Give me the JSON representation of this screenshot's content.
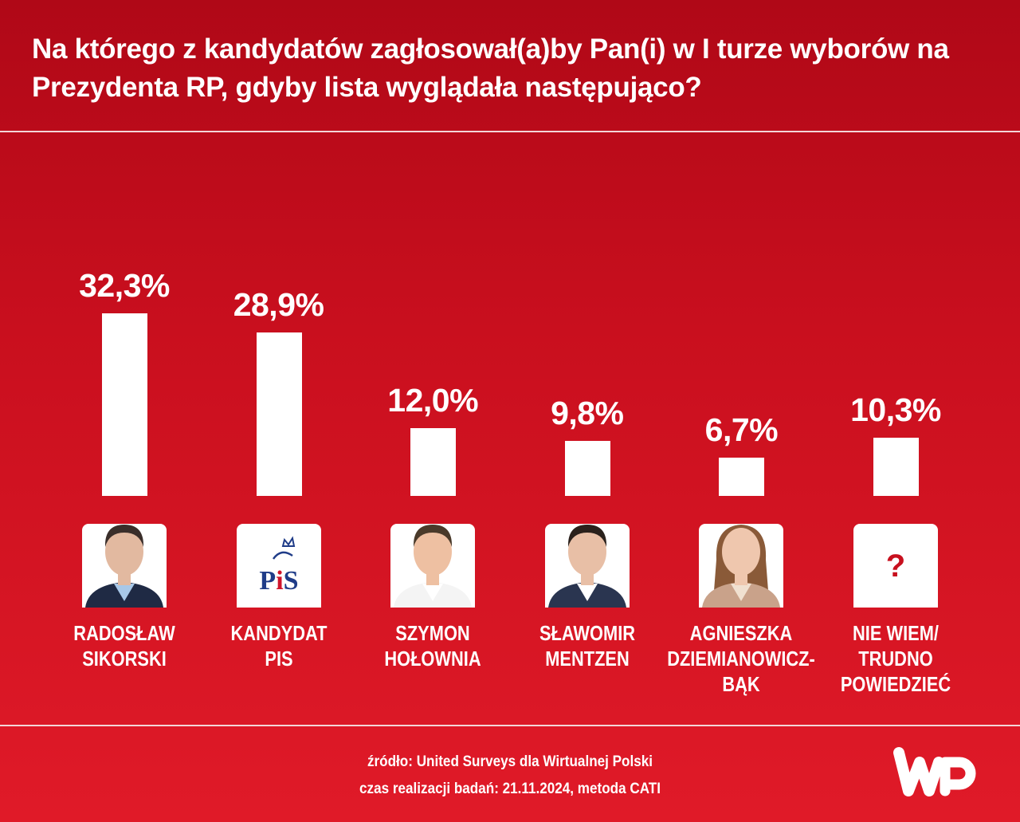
{
  "header": {
    "title": "Na którego z kandydatów zagłosował(a)by Pan(i) w I turze wyborów na Prezydenta RP, gdyby lista wyglądała następująco?"
  },
  "chart_data": {
    "type": "bar",
    "title": "Na którego z kandydatów zagłosował(a)by Pan(i) w I turze wyborów na Prezydenta RP, gdyby lista wyglądała następująco?",
    "categories": [
      "RADOSŁAW SIKORSKI",
      "KANDYDAT PIS",
      "SZYMON HOŁOWNIA",
      "SŁAWOMIR MENTZEN",
      "AGNIESZKA DZIEMIANOWICZ-BĄK",
      "NIE WIEM/ TRUDNO POWIEDZIEĆ"
    ],
    "label_lines": [
      [
        "RADOSŁAW",
        "SIKORSKI"
      ],
      [
        "KANDYDAT",
        "PIS"
      ],
      [
        "SZYMON",
        "HOŁOWNIA"
      ],
      [
        "SŁAWOMIR",
        "MENTZEN"
      ],
      [
        "AGNIESZKA",
        "DZIEMIANOWICZ-BĄK"
      ],
      [
        "NIE WIEM/",
        "TRUDNO",
        "POWIEDZIEĆ"
      ]
    ],
    "values": [
      32.3,
      28.9,
      12.0,
      9.8,
      6.7,
      10.3
    ],
    "value_labels": [
      "32,3%",
      "28,9%",
      "12,0%",
      "9,8%",
      "6,7%",
      "10,3%"
    ],
    "images": [
      "portrait",
      "pis-logo",
      "portrait",
      "portrait",
      "portrait",
      "question-mark"
    ],
    "unit": "%",
    "xlabel": "",
    "ylabel": "",
    "grid": false,
    "colors": {
      "bar": "#ffffff",
      "background": "#d01522"
    }
  },
  "footer": {
    "source": "źródło: United Surveys dla Wirtualnej Polski",
    "method": "czas realizacji badań: 21.11.2024, metoda CATI",
    "logo_text": "WP"
  }
}
